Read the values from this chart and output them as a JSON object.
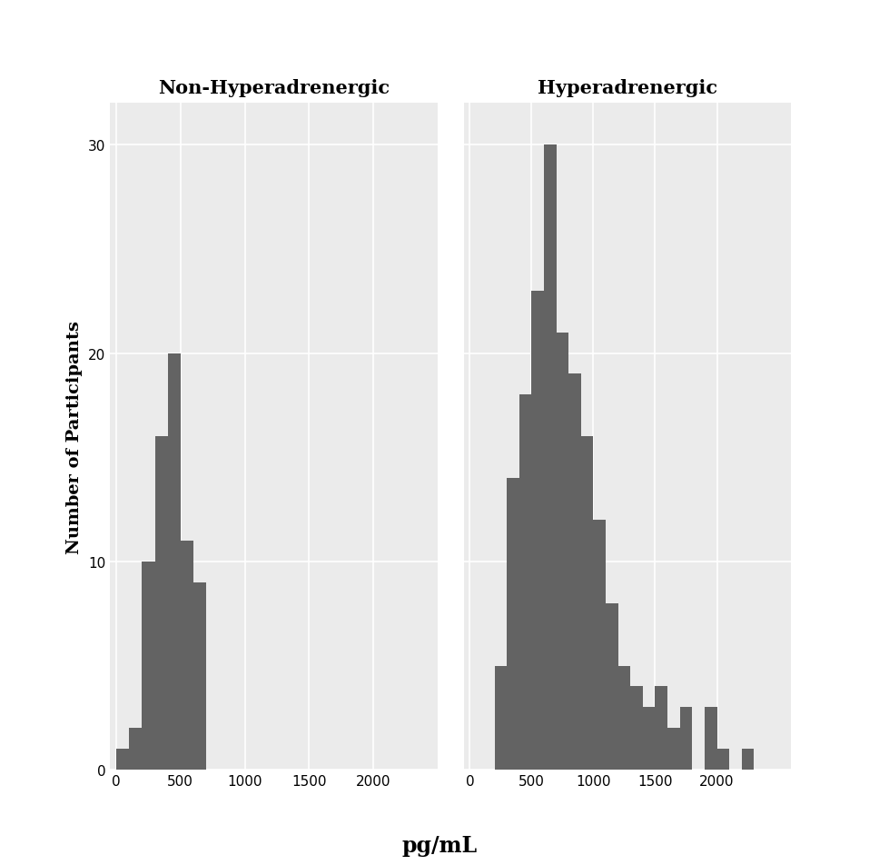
{
  "title_left": "Non-Hyperadrenergic",
  "title_right": "Hyperadrenergic",
  "xlabel": "pg/mL",
  "ylabel": "Number of Participants",
  "bar_color": "#636363",
  "background_color": "#ebebeb",
  "figure_background": "#ffffff",
  "bin_width": 100,
  "left_bars": {
    "bin_lefts": [
      50,
      150,
      250,
      350,
      450,
      550,
      650
    ],
    "counts": [
      1,
      2,
      10,
      16,
      20,
      11,
      9
    ]
  },
  "right_bars": {
    "bin_lefts": [
      250,
      350,
      450,
      550,
      650,
      750,
      850,
      950,
      1050,
      1150,
      1250,
      1350,
      1450,
      1550,
      1650,
      1750,
      1950,
      2050,
      2250
    ],
    "counts": [
      5,
      14,
      18,
      23,
      30,
      21,
      19,
      16,
      12,
      8,
      5,
      4,
      3,
      4,
      2,
      3,
      3,
      1,
      1
    ]
  },
  "ylim": [
    0,
    32
  ],
  "xlim_left": [
    -50,
    2500
  ],
  "xlim_right": [
    -50,
    2600
  ],
  "yticks": [
    0,
    10,
    20,
    30
  ],
  "xticks_left": [
    0,
    500,
    1000,
    1500,
    2000
  ],
  "xticks_right": [
    0,
    500,
    1000,
    1500,
    2000
  ],
  "title_fontsize": 15,
  "label_fontsize": 14,
  "tick_fontsize": 11,
  "grid_color": "#ffffff",
  "grid_linewidth": 1.2
}
